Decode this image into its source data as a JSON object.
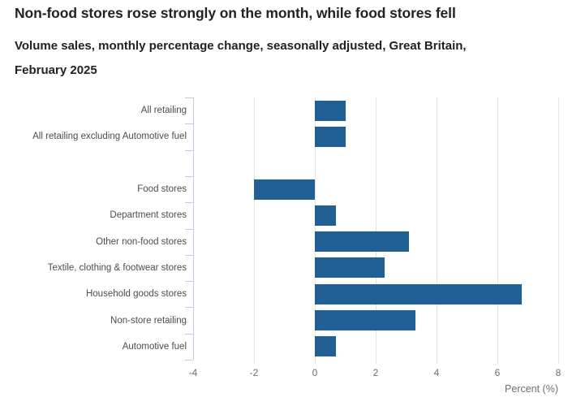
{
  "chart_data": {
    "type": "bar",
    "orientation": "horizontal",
    "title": "Non-food stores rose strongly on the month, while food stores fell",
    "subtitle": "Volume sales, monthly percentage change, seasonally adjusted, Great Britain, February 2025",
    "xlabel": "Percent (%)",
    "xlim": [
      -4,
      8
    ],
    "xticks": [
      -4,
      -2,
      0,
      2,
      4,
      6,
      8
    ],
    "grid": "vertical",
    "legend": "none",
    "colors": {
      "bar": "#206095",
      "gridline": "#e2e2e2",
      "axis": "#c3cce1",
      "category_text": "#4c4c50",
      "tick_text": "#6e6e73",
      "title_text": "#222222"
    },
    "categories": [
      "All retailing",
      "All retailing excluding Automotive fuel",
      "Food stores",
      "Department stores",
      "Other non-food stores",
      "Textile, clothing & footwear stores",
      "Household goods stores",
      "Non-store retailing",
      "Automotive fuel"
    ],
    "values": [
      1.0,
      1.0,
      -2.0,
      0.7,
      3.1,
      2.3,
      6.8,
      3.3,
      0.7
    ],
    "rows": [
      {
        "label": "All retailing",
        "value": 1.0
      },
      {
        "label": "All retailing excluding Automotive fuel",
        "value": 1.0
      },
      {
        "label": "",
        "value": null
      },
      {
        "label": "Food stores",
        "value": -2.0
      },
      {
        "label": "Department stores",
        "value": 0.7
      },
      {
        "label": "Other non-food stores",
        "value": 3.1
      },
      {
        "label": "Textile, clothing & footwear stores",
        "value": 2.3
      },
      {
        "label": "Household goods stores",
        "value": 6.8
      },
      {
        "label": "Non-store retailing",
        "value": 3.3
      },
      {
        "label": "Automotive fuel",
        "value": 0.7
      }
    ]
  }
}
